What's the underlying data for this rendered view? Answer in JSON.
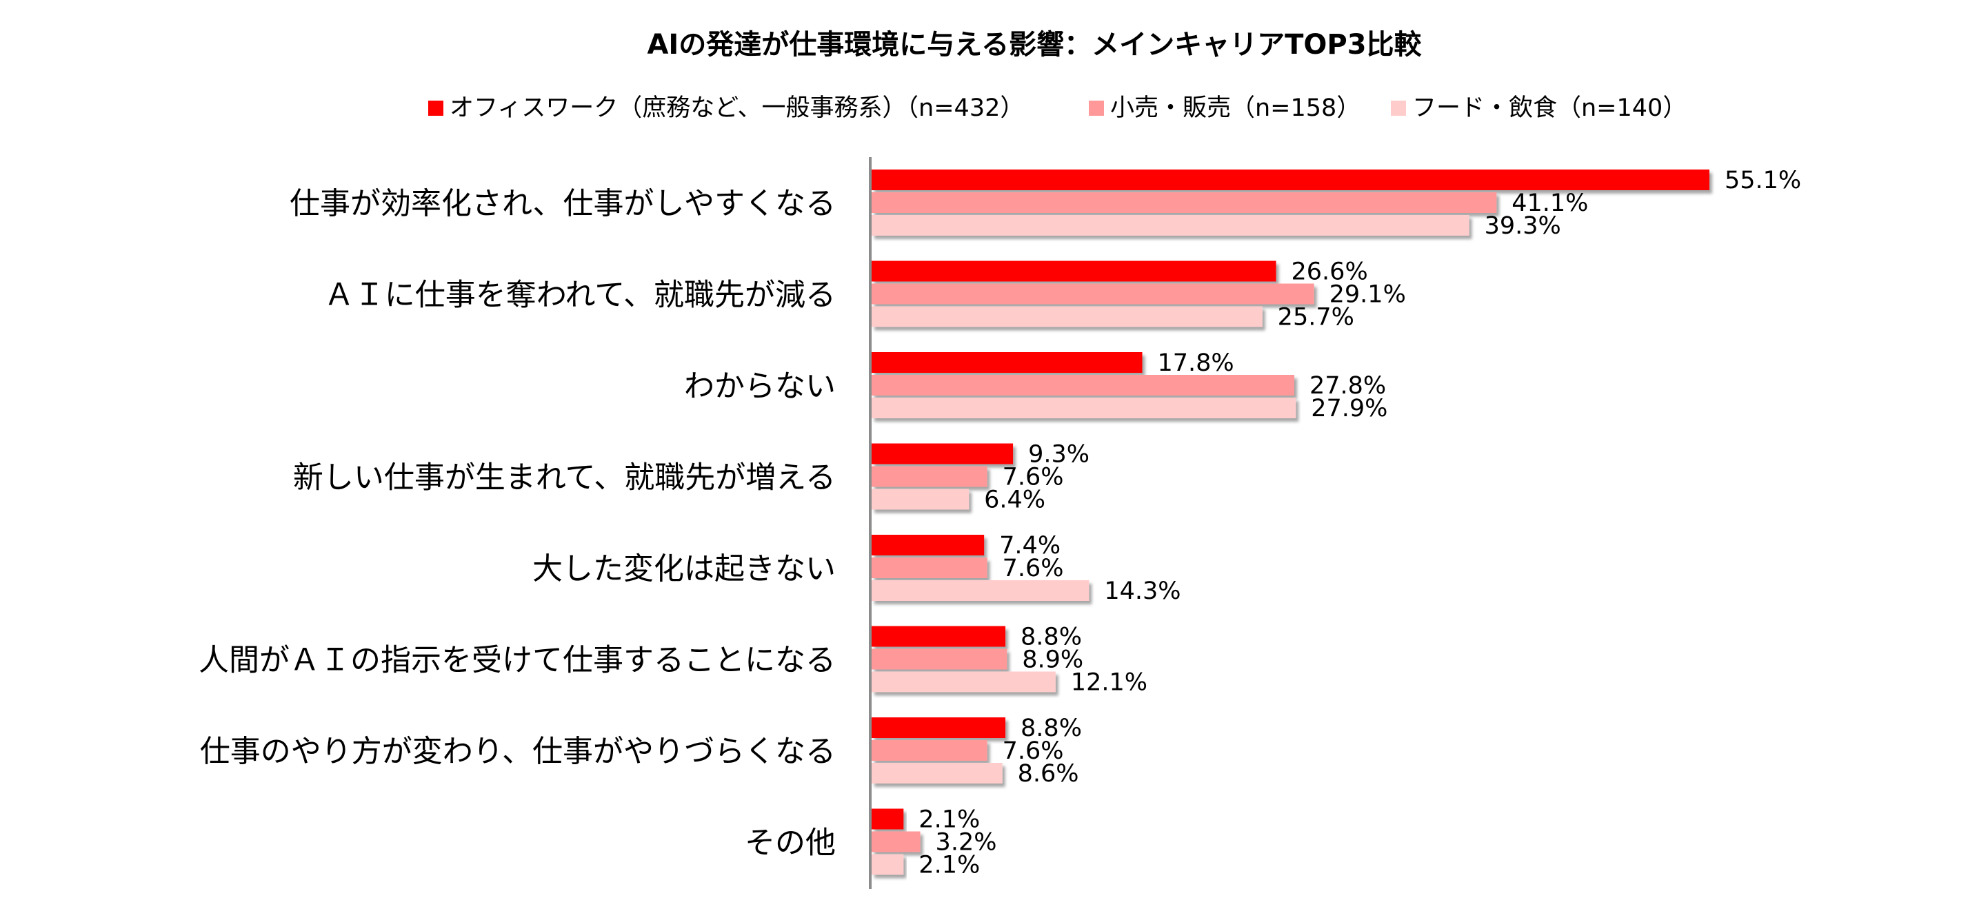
{
  "chart_data": {
    "type": "bar",
    "orientation": "horizontal",
    "title": "AIの発達が仕事環境に与える影響：メインキャリアTOP3比較",
    "xlim": [
      0,
      60
    ],
    "grid": false,
    "legend_position": "top",
    "categories": [
      "仕事が効率化され、仕事がしやすくなる",
      "ＡＩに仕事を奪われて、就職先が減る",
      "わからない",
      "新しい仕事が生まれて、就職先が増える",
      "大した変化は起きない",
      "人間がＡＩの指示を受けて仕事することになる",
      "仕事のやり方が変わり、仕事がやりづらくなる",
      "その他"
    ],
    "series": [
      {
        "name": "オフィスワーク（庶務など、一般事務系）（n=432）",
        "color": "#ff0000",
        "values": [
          55.1,
          26.6,
          17.8,
          9.3,
          7.4,
          8.8,
          8.8,
          2.1
        ],
        "labels": [
          "55.1%",
          "26.6%",
          "17.8%",
          "9.3%",
          "7.4%",
          "8.8%",
          "8.8%",
          "2.1%"
        ]
      },
      {
        "name": "小売・販売（n=158）",
        "color": "#ff9999",
        "values": [
          41.1,
          29.1,
          27.8,
          7.6,
          7.6,
          8.9,
          7.6,
          3.2
        ],
        "labels": [
          "41.1%",
          "29.1%",
          "27.8%",
          "7.6%",
          "7.6%",
          "8.9%",
          "7.6%",
          "3.2%"
        ]
      },
      {
        "name": "フード・飲食（n=140）",
        "color": "#ffcccc",
        "values": [
          39.3,
          25.7,
          27.9,
          6.4,
          14.3,
          12.1,
          8.6,
          2.1
        ],
        "labels": [
          "39.3%",
          "25.7%",
          "27.9%",
          "6.4%",
          "14.3%",
          "12.1%",
          "8.6%",
          "2.1%"
        ]
      }
    ]
  }
}
